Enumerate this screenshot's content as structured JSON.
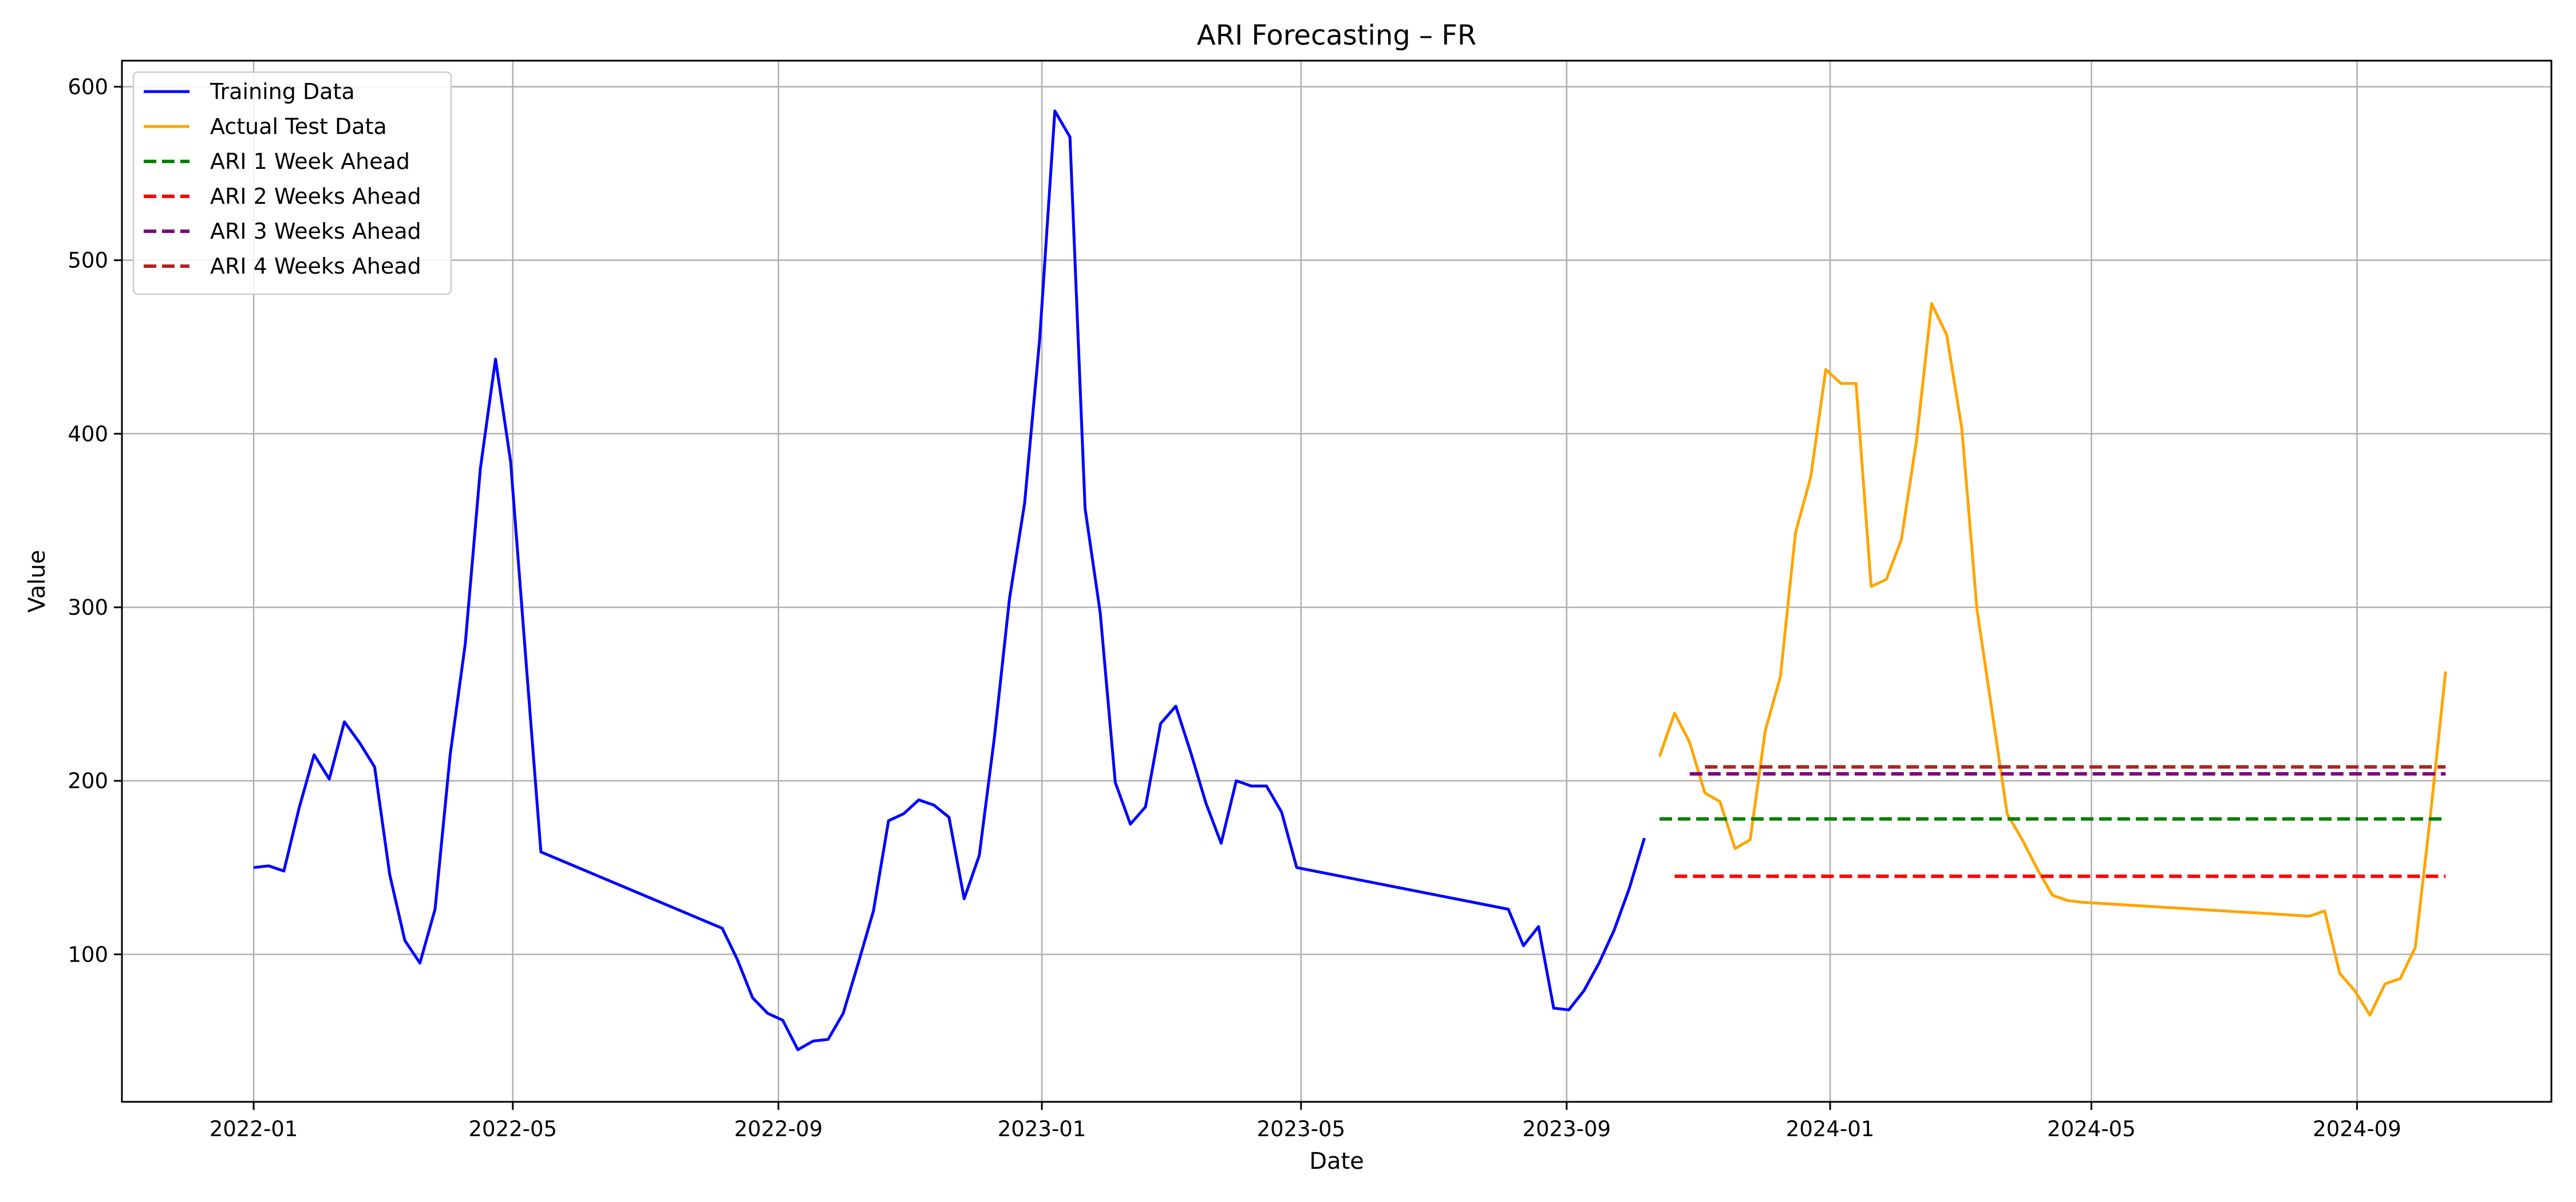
{
  "chart_data": {
    "type": "line",
    "title": "ARI Forecasting – FR",
    "xlabel": "Date",
    "ylabel": "Value",
    "x_ticks": [
      "2022-01",
      "2022-05",
      "2022-09",
      "2023-01",
      "2023-05",
      "2023-09",
      "2024-01",
      "2024-05",
      "2024-09"
    ],
    "y_ticks": [
      100,
      200,
      300,
      400,
      500,
      600
    ],
    "xlim": [
      "2021-11-01",
      "2024-11-30"
    ],
    "ylim": [
      15,
      615
    ],
    "grid": true,
    "legend_position": "upper-left",
    "series": [
      {
        "name": "Training Data",
        "color": "#0000ff",
        "style": "solid",
        "points": [
          [
            "2022-01-01",
            150
          ],
          [
            "2022-01-08",
            151
          ],
          [
            "2022-01-15",
            148
          ],
          [
            "2022-01-22",
            184
          ],
          [
            "2022-01-29",
            215
          ],
          [
            "2022-02-05",
            201
          ],
          [
            "2022-02-12",
            234
          ],
          [
            "2022-02-19",
            222
          ],
          [
            "2022-02-26",
            208
          ],
          [
            "2022-03-05",
            146
          ],
          [
            "2022-03-12",
            108
          ],
          [
            "2022-03-19",
            95
          ],
          [
            "2022-03-26",
            126
          ],
          [
            "2022-04-02",
            215
          ],
          [
            "2022-04-09",
            279
          ],
          [
            "2022-04-16",
            380
          ],
          [
            "2022-04-23",
            443
          ],
          [
            "2022-04-30",
            384
          ],
          [
            "2022-05-07",
            271
          ],
          [
            "2022-05-14",
            159
          ],
          [
            "2022-08-06",
            115
          ],
          [
            "2022-08-13",
            97
          ],
          [
            "2022-08-20",
            75
          ],
          [
            "2022-08-27",
            66
          ],
          [
            "2022-09-03",
            62
          ],
          [
            "2022-09-10",
            45
          ],
          [
            "2022-09-17",
            50
          ],
          [
            "2022-09-24",
            51
          ],
          [
            "2022-10-01",
            66
          ],
          [
            "2022-10-08",
            95
          ],
          [
            "2022-10-15",
            125
          ],
          [
            "2022-10-22",
            177
          ],
          [
            "2022-10-29",
            181
          ],
          [
            "2022-11-05",
            189
          ],
          [
            "2022-11-12",
            186
          ],
          [
            "2022-11-19",
            179
          ],
          [
            "2022-11-26",
            132
          ],
          [
            "2022-12-03",
            157
          ],
          [
            "2022-12-10",
            225
          ],
          [
            "2022-12-17",
            305
          ],
          [
            "2022-12-24",
            360
          ],
          [
            "2022-12-31",
            455
          ],
          [
            "2023-01-07",
            586
          ],
          [
            "2023-01-14",
            571
          ],
          [
            "2023-01-21",
            357
          ],
          [
            "2023-01-28",
            297
          ],
          [
            "2023-02-04",
            199
          ],
          [
            "2023-02-11",
            175
          ],
          [
            "2023-02-18",
            185
          ],
          [
            "2023-02-25",
            233
          ],
          [
            "2023-03-04",
            243
          ],
          [
            "2023-03-11",
            216
          ],
          [
            "2023-03-18",
            187
          ],
          [
            "2023-03-25",
            164
          ],
          [
            "2023-04-01",
            200
          ],
          [
            "2023-04-08",
            197
          ],
          [
            "2023-04-15",
            197
          ],
          [
            "2023-04-22",
            182
          ],
          [
            "2023-04-29",
            150
          ],
          [
            "2023-08-05",
            126
          ],
          [
            "2023-08-12",
            105
          ],
          [
            "2023-08-19",
            116
          ],
          [
            "2023-08-26",
            69
          ],
          [
            "2023-09-02",
            68
          ],
          [
            "2023-09-09",
            79
          ],
          [
            "2023-09-16",
            95
          ],
          [
            "2023-09-23",
            114
          ],
          [
            "2023-09-30",
            138
          ],
          [
            "2023-10-07",
            167
          ]
        ]
      },
      {
        "name": "Actual Test Data",
        "color": "#ffa500",
        "style": "solid",
        "points": [
          [
            "2023-10-14",
            214
          ],
          [
            "2023-10-21",
            239
          ],
          [
            "2023-10-28",
            222
          ],
          [
            "2023-11-04",
            193
          ],
          [
            "2023-11-11",
            188
          ],
          [
            "2023-11-18",
            161
          ],
          [
            "2023-11-25",
            166
          ],
          [
            "2023-12-02",
            229
          ],
          [
            "2023-12-09",
            260
          ],
          [
            "2023-12-16",
            343
          ],
          [
            "2023-12-23",
            375
          ],
          [
            "2023-12-30",
            437
          ],
          [
            "2024-01-06",
            429
          ],
          [
            "2024-01-13",
            429
          ],
          [
            "2024-01-20",
            312
          ],
          [
            "2024-01-27",
            316
          ],
          [
            "2024-02-03",
            339
          ],
          [
            "2024-02-10",
            396
          ],
          [
            "2024-02-17",
            475
          ],
          [
            "2024-02-24",
            457
          ],
          [
            "2024-03-02",
            403
          ],
          [
            "2024-03-09",
            299
          ],
          [
            "2024-03-16",
            240
          ],
          [
            "2024-03-23",
            181
          ],
          [
            "2024-03-30",
            166
          ],
          [
            "2024-04-06",
            149
          ],
          [
            "2024-04-13",
            134
          ],
          [
            "2024-04-20",
            131
          ],
          [
            "2024-04-27",
            130
          ],
          [
            "2024-08-10",
            122
          ],
          [
            "2024-08-17",
            125
          ],
          [
            "2024-08-24",
            89
          ],
          [
            "2024-08-31",
            79
          ],
          [
            "2024-09-07",
            65
          ],
          [
            "2024-09-14",
            83
          ],
          [
            "2024-09-21",
            86
          ],
          [
            "2024-09-28",
            104
          ],
          [
            "2024-10-05",
            180
          ],
          [
            "2024-10-12",
            263
          ]
        ]
      },
      {
        "name": "ARI 1 Week Ahead",
        "color": "#008000",
        "style": "dashed",
        "points": [
          [
            "2023-10-14",
            178
          ],
          [
            "2024-10-12",
            178
          ]
        ]
      },
      {
        "name": "ARI 2 Weeks Ahead",
        "color": "#ff0000",
        "style": "dashed",
        "points": [
          [
            "2023-10-21",
            145
          ],
          [
            "2024-10-12",
            145
          ]
        ]
      },
      {
        "name": "ARI 3 Weeks Ahead",
        "color": "#800080",
        "style": "dashed",
        "points": [
          [
            "2023-10-28",
            204
          ],
          [
            "2024-10-12",
            204
          ]
        ]
      },
      {
        "name": "ARI 4 Weeks Ahead",
        "color": "#b22222",
        "style": "dashed",
        "points": [
          [
            "2023-11-04",
            208
          ],
          [
            "2024-10-12",
            208
          ]
        ]
      }
    ]
  }
}
